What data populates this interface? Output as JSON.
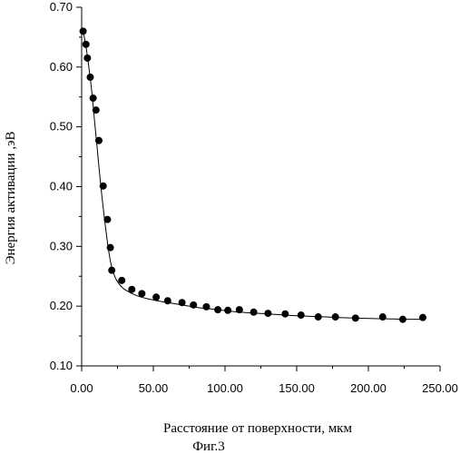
{
  "chart_data": {
    "type": "scatter",
    "title": "",
    "xlabel": "Расстояние от поверхности,  мкм",
    "ylabel": "Энергия активации ,эВ",
    "caption": "Фиг.3",
    "xlim": [
      0,
      250
    ],
    "ylim": [
      0.1,
      0.7
    ],
    "xticks": [
      0,
      50,
      100,
      150,
      200,
      250
    ],
    "yticks": [
      0.1,
      0.2,
      0.3,
      0.4,
      0.5,
      0.6,
      0.7
    ],
    "xtick_labels": [
      "0.00",
      "50.00",
      "100.00",
      "150.00",
      "200.00",
      "250.00"
    ],
    "ytick_labels": [
      "0.10",
      "0.20",
      "0.30",
      "0.40",
      "0.50",
      "0.60",
      "0.70"
    ],
    "grid": false,
    "legend": "none",
    "series": [
      {
        "kind": "points",
        "color": "#000000",
        "x": [
          1,
          3,
          4,
          6,
          8,
          10,
          12,
          15,
          18,
          20,
          21,
          28,
          35,
          42,
          52,
          60,
          70,
          78,
          87,
          95,
          102,
          110,
          120,
          130,
          142,
          153,
          165,
          177,
          191,
          210,
          224,
          238
        ],
        "y": [
          0.66,
          0.638,
          0.615,
          0.583,
          0.548,
          0.528,
          0.477,
          0.401,
          0.345,
          0.298,
          0.26,
          0.243,
          0.228,
          0.221,
          0.215,
          0.209,
          0.206,
          0.202,
          0.199,
          0.194,
          0.193,
          0.194,
          0.19,
          0.188,
          0.187,
          0.185,
          0.182,
          0.182,
          0.18,
          0.182,
          0.178,
          0.181
        ]
      },
      {
        "kind": "fit-curve",
        "color": "#000000",
        "x": [
          1,
          3,
          5,
          7,
          9,
          11,
          13,
          15,
          17,
          19,
          21,
          24,
          28,
          32,
          38,
          45,
          55,
          65,
          80,
          95,
          110,
          130,
          150,
          170,
          190,
          210,
          225,
          238
        ],
        "y": [
          0.66,
          0.635,
          0.6,
          0.56,
          0.51,
          0.46,
          0.41,
          0.365,
          0.325,
          0.29,
          0.265,
          0.245,
          0.232,
          0.225,
          0.218,
          0.213,
          0.208,
          0.204,
          0.198,
          0.194,
          0.19,
          0.187,
          0.184,
          0.182,
          0.18,
          0.179,
          0.178,
          0.178
        ]
      }
    ]
  }
}
